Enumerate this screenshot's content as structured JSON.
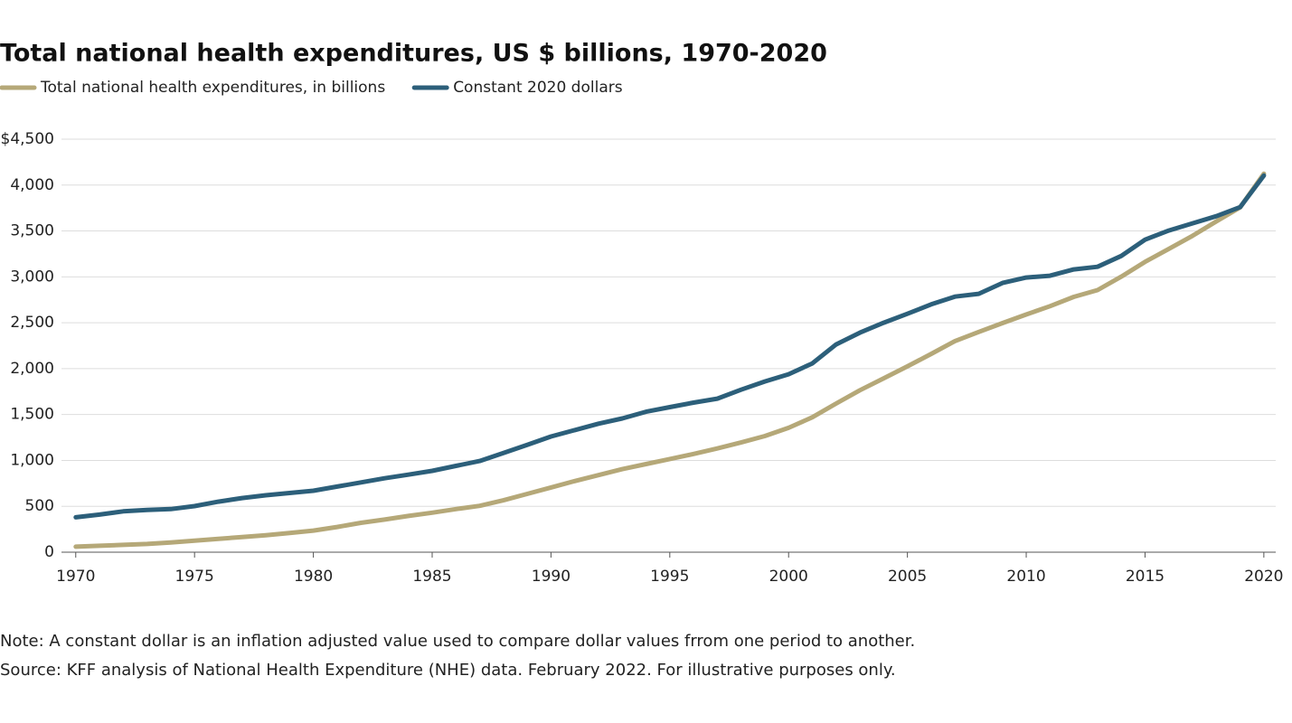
{
  "chart_data": {
    "type": "line",
    "title": "Total national health expenditures, US $ billions, 1970-2020",
    "x": [
      1970,
      1971,
      1972,
      1973,
      1974,
      1975,
      1976,
      1977,
      1978,
      1979,
      1980,
      1981,
      1982,
      1983,
      1984,
      1985,
      1986,
      1987,
      1988,
      1989,
      1990,
      1991,
      1992,
      1993,
      1994,
      1995,
      1996,
      1997,
      1998,
      1999,
      2000,
      2001,
      2002,
      2003,
      2004,
      2005,
      2006,
      2007,
      2008,
      2009,
      2010,
      2011,
      2012,
      2013,
      2014,
      2015,
      2016,
      2017,
      2018,
      2019,
      2020
    ],
    "series": [
      {
        "name": "Total national health expenditures, in billions",
        "color": "#b5a878",
        "values": [
          60,
          70,
          80,
          90,
          105,
          125,
          145,
          165,
          185,
          210,
          235,
          275,
          320,
          355,
          395,
          430,
          470,
          505,
          565,
          635,
          705,
          775,
          840,
          905,
          960,
          1015,
          1070,
          1130,
          1195,
          1265,
          1355,
          1470,
          1620,
          1765,
          1895,
          2025,
          2160,
          2300,
          2400,
          2496,
          2590,
          2680,
          2782,
          2856,
          3002,
          3164,
          3305,
          3447,
          3604,
          3757,
          4124
        ]
      },
      {
        "name": "Constant 2020 dollars",
        "color": "#2c5f7a",
        "values": [
          380,
          410,
          445,
          460,
          470,
          502,
          550,
          590,
          620,
          645,
          670,
          715,
          760,
          805,
          845,
          886,
          940,
          994,
          1080,
          1170,
          1260,
          1330,
          1400,
          1457,
          1530,
          1580,
          1630,
          1673,
          1770,
          1860,
          1939,
          2057,
          2264,
          2392,
          2500,
          2598,
          2700,
          2785,
          2815,
          2933,
          2992,
          3012,
          3081,
          3110,
          3228,
          3405,
          3504,
          3583,
          3661,
          3760,
          4104
        ]
      }
    ],
    "xlim": [
      1969.4,
      2020.5
    ],
    "xticks": [
      1970,
      1975,
      1980,
      1985,
      1990,
      1995,
      2000,
      2005,
      2010,
      2015,
      2020
    ],
    "ylim": [
      0,
      4500
    ],
    "yticks": [
      0,
      500,
      {
        "value": 1000,
        "label": "1,000"
      },
      {
        "value": 1500,
        "label": "1,500"
      },
      {
        "value": 2000,
        "label": "2,000"
      },
      {
        "value": 2500,
        "label": "2,500"
      },
      {
        "value": 3000,
        "label": "3,000"
      },
      {
        "value": 3500,
        "label": "3,500"
      },
      {
        "value": 4000,
        "label": "4,000"
      },
      {
        "value": 4500,
        "label": "$4,500"
      }
    ],
    "grid": true,
    "notes": [
      "Note: A constant dollar is an inflation adjusted value used to compare dollar values frrom one period to another.",
      "Source: KFF analysis of National Health Expenditure (NHE) data. February 2022. For illustrative purposes only."
    ]
  }
}
